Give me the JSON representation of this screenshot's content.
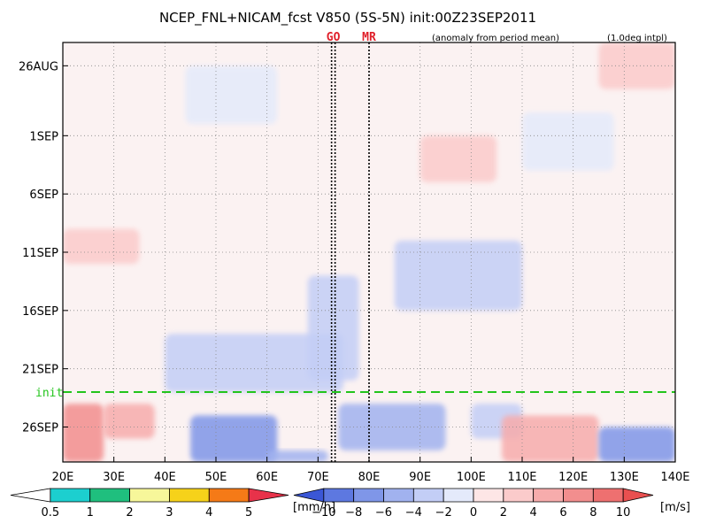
{
  "title": "NCEP_FNL+NICAM_fcst V850 (5S-5N) init:00Z23SEP2011",
  "subtitle_left": "(anomaly from period mean)",
  "subtitle_right": "(1.0deg intpl)",
  "markers": [
    {
      "label": "GO",
      "lon": 73
    },
    {
      "label": "MR",
      "lon": 80
    }
  ],
  "init_label": "init",
  "colors": {
    "init_line": "#23c41c",
    "marker_text": "#e0202a",
    "frame": "#000000"
  },
  "chart_data": {
    "type": "heatmap",
    "xlim": [
      20,
      140
    ],
    "x_ticks": [
      "20E",
      "30E",
      "40E",
      "50E",
      "60E",
      "70E",
      "80E",
      "90E",
      "100E",
      "110E",
      "120E",
      "130E",
      "140E"
    ],
    "y_ticks": [
      "26AUG",
      "1SEP",
      "6SEP",
      "11SEP",
      "16SEP",
      "21SEP",
      "26SEP"
    ],
    "y_range": [
      "24AUG2011",
      "29SEP2011"
    ],
    "init_date": "23SEP2011",
    "grid": true,
    "wind_colorbar": {
      "levels": [
        "-10",
        "-8",
        "-6",
        "-4",
        "-2",
        "0",
        "2",
        "4",
        "6",
        "8",
        "10"
      ],
      "unit": "[m/s]",
      "colors": [
        "#3b57d6",
        "#5d78e0",
        "#7f96e8",
        "#a1b2ef",
        "#c3cef6",
        "#e4eafb",
        "#fde6e6",
        "#fbcbcb",
        "#f7acac",
        "#f28e8e",
        "#ee7070",
        "#e95050"
      ]
    },
    "precip_colorbar": {
      "levels": [
        "0.5",
        "1",
        "2",
        "3",
        "4",
        "5"
      ],
      "unit": "[mm/h]",
      "colors": [
        "#ffffff",
        "#1ccfcf",
        "#1fbf7e",
        "#f7f79a",
        "#f6d21a",
        "#f57a17",
        "#e8324a"
      ]
    },
    "anomaly_regions": [
      {
        "lon": [
          20,
          28
        ],
        "start": "24SEP2011",
        "end": "29SEP2011",
        "value": 6
      },
      {
        "lon": [
          28,
          38
        ],
        "start": "24SEP2011",
        "end": "27SEP2011",
        "value": 4
      },
      {
        "lon": [
          45,
          62
        ],
        "start": "25SEP2011",
        "end": "29SEP2011",
        "value": -8
      },
      {
        "lon": [
          60,
          72
        ],
        "start": "28SEP2011",
        "end": "29SEP2011",
        "value": -6
      },
      {
        "lon": [
          74,
          95
        ],
        "start": "24SEP2011",
        "end": "28SEP2011",
        "value": -5
      },
      {
        "lon": [
          100,
          110
        ],
        "start": "24SEP2011",
        "end": "27SEP2011",
        "value": -3
      },
      {
        "lon": [
          106,
          125
        ],
        "start": "25SEP2011",
        "end": "29SEP2011",
        "value": 4
      },
      {
        "lon": [
          125,
          140
        ],
        "start": "26SEP2011",
        "end": "29SEP2011",
        "value": -7
      },
      {
        "lon": [
          40,
          75
        ],
        "start": "18SEP2011",
        "end": "23SEP2011",
        "value": -3
      },
      {
        "lon": [
          68,
          78
        ],
        "start": "13SEP2011",
        "end": "22SEP2011",
        "value": -4
      },
      {
        "lon": [
          85,
          110
        ],
        "start": "10SEP2011",
        "end": "16SEP2011",
        "value": -3
      },
      {
        "lon": [
          44,
          62
        ],
        "start": "26AUG2011",
        "end": "31AUG2011",
        "value": -2
      },
      {
        "lon": [
          20,
          35
        ],
        "start": "9SEP2011",
        "end": "12SEP2011",
        "value": 2
      },
      {
        "lon": [
          125,
          140
        ],
        "start": "24AUG2011",
        "end": "28AUG2011",
        "value": 3
      },
      {
        "lon": [
          110,
          128
        ],
        "start": "30AUG2011",
        "end": "4SEP2011",
        "value": -2
      },
      {
        "lon": [
          90,
          105
        ],
        "start": "1SEP2011",
        "end": "5SEP2011",
        "value": 2
      }
    ]
  }
}
